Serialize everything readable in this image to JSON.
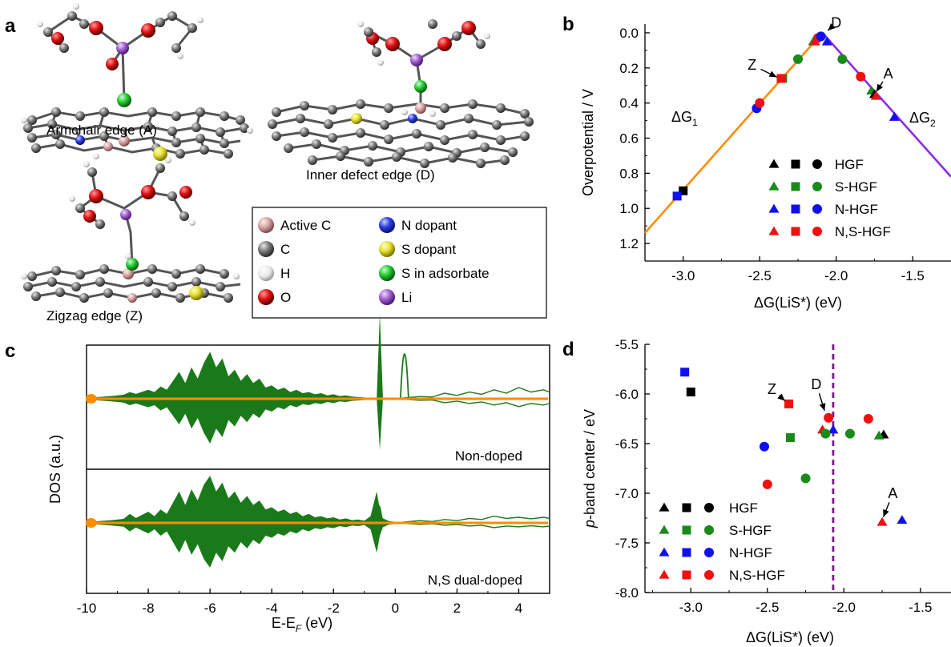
{
  "panels": {
    "a": {
      "letter": "a",
      "captions": {
        "armchair": "Armchair edge (A)",
        "inner": "Inner defect edge (D)",
        "zigzag": "Zigzag edge (Z)"
      },
      "legend": [
        {
          "label": "Active C",
          "color": "#d9a6a6"
        },
        {
          "label": "N dopant",
          "color": "#2b3de0"
        },
        {
          "label": "C",
          "color": "#666666"
        },
        {
          "label": "S dopant",
          "color": "#e6e030"
        },
        {
          "label": "H",
          "color": "#f0f0f0"
        },
        {
          "label": "S in adsorbate",
          "color": "#22cc33"
        },
        {
          "label": "O",
          "color": "#dd1111"
        },
        {
          "label": "Li",
          "color": "#a060d0"
        }
      ]
    },
    "b": {
      "letter": "b"
    },
    "c": {
      "letter": "c"
    },
    "d": {
      "letter": "d"
    }
  },
  "series_legend": {
    "entries": [
      {
        "label": "HGF",
        "color": "#000000"
      },
      {
        "label": "S-HGF",
        "color": "#1a8a1a"
      },
      {
        "label": "N-HGF",
        "color": "#1010ee"
      },
      {
        "label": "N,S-HGF",
        "color": "#ee1111"
      }
    ]
  },
  "chart_data": [
    {
      "panel": "b",
      "type": "scatter",
      "xlabel": "ΔG(LiS*) (eV)",
      "ylabel": "Overpotential / V",
      "xlim": [
        -3.25,
        -1.25
      ],
      "ylim": [
        1.3,
        -0.05
      ],
      "x_ticks": [
        "-3.0",
        "-2.5",
        "-2.0",
        "-1.5"
      ],
      "x_tick_values": [
        -3.0,
        -2.5,
        -2.0,
        -1.5
      ],
      "y_ticks": [
        "0.0",
        "0.2",
        "0.4",
        "0.6",
        "0.8",
        "1.0",
        "1.2"
      ],
      "y_tick_values": [
        0.0,
        0.2,
        0.4,
        0.6,
        0.8,
        1.0,
        1.2
      ],
      "lines": [
        {
          "name": "ΔG1",
          "label_main": "ΔG",
          "label_sub": "1",
          "color": "#ff8c00",
          "x": [
            -3.25,
            -2.09
          ],
          "y": [
            1.14,
            0.0
          ]
        },
        {
          "name": "ΔG2",
          "label_main": "ΔG",
          "label_sub": "2",
          "color": "#8a2be2",
          "x": [
            -2.09,
            -1.25
          ],
          "y": [
            0.0,
            0.82
          ]
        }
      ],
      "points": [
        {
          "x": -3.0,
          "y": 0.9,
          "shape": "square",
          "color": "#000000"
        },
        {
          "x": -3.04,
          "y": 0.93,
          "shape": "square",
          "color": "#1010ee"
        },
        {
          "x": -2.52,
          "y": 0.43,
          "shape": "circle",
          "color": "#1010ee"
        },
        {
          "x": -2.5,
          "y": 0.4,
          "shape": "circle",
          "color": "#ee1111"
        },
        {
          "x": -2.35,
          "y": 0.26,
          "shape": "square",
          "color": "#1a8a1a"
        },
        {
          "x": -2.36,
          "y": 0.26,
          "shape": "square",
          "color": "#ee1111"
        },
        {
          "x": -2.25,
          "y": 0.15,
          "shape": "circle",
          "color": "#1a8a1a"
        },
        {
          "x": -2.15,
          "y": 0.05,
          "shape": "triangle",
          "color": "#1a8a1a"
        },
        {
          "x": -2.14,
          "y": 0.05,
          "shape": "triangle",
          "color": "#ee1111"
        },
        {
          "x": -2.12,
          "y": 0.03,
          "shape": "circle",
          "color": "#ee1111"
        },
        {
          "x": -2.1,
          "y": 0.02,
          "shape": "circle",
          "color": "#1010ee"
        },
        {
          "x": -2.06,
          "y": 0.05,
          "shape": "triangle",
          "color": "#1010ee"
        },
        {
          "x": -1.96,
          "y": 0.15,
          "shape": "circle",
          "color": "#1a8a1a"
        },
        {
          "x": -1.84,
          "y": 0.25,
          "shape": "circle",
          "color": "#ee1111"
        },
        {
          "x": -1.77,
          "y": 0.33,
          "shape": "triangle",
          "color": "#1a8a1a"
        },
        {
          "x": -1.75,
          "y": 0.35,
          "shape": "triangle",
          "color": "#000000"
        },
        {
          "x": -1.74,
          "y": 0.36,
          "shape": "triangle",
          "color": "#ee1111"
        },
        {
          "x": -1.62,
          "y": 0.48,
          "shape": "triangle",
          "color": "#1010ee"
        }
      ],
      "annotations": [
        {
          "text": "D",
          "color": "#ee1111",
          "x": -2.0,
          "y": -0.03,
          "ax": -2.07,
          "ay": 0.0
        },
        {
          "text": "Z",
          "color": "#ee1111",
          "x": -2.55,
          "y": 0.21,
          "ax": -2.37,
          "ay": 0.26
        },
        {
          "text": "A",
          "color": "#ee1111",
          "x": -1.66,
          "y": 0.26,
          "ax": -1.75,
          "ay": 0.35
        }
      ]
    },
    {
      "panel": "c",
      "type": "area",
      "xlabel_main": "E-E",
      "xlabel_sub": "F",
      "xlabel_unit": " (eV)",
      "ylabel": "DOS (a.u.)",
      "xlim": [
        -10,
        5
      ],
      "x_ticks": [
        "-10",
        "-8",
        "-6",
        "-4",
        "-2",
        "0",
        "2",
        "4"
      ],
      "x_tick_values": [
        -10,
        -8,
        -6,
        -4,
        -2,
        0,
        2,
        4
      ],
      "fill_color": "#1a7a1a",
      "line_color": "#ff8c00",
      "subpanels": [
        {
          "label": "Non-doped",
          "envelope": [
            [
              -10,
              0.4
            ],
            [
              -9.6,
              0.8
            ],
            [
              -9.2,
              1.2
            ],
            [
              -8.8,
              1.8
            ],
            [
              -8.6,
              3
            ],
            [
              -8.4,
              2.2
            ],
            [
              -8,
              4
            ],
            [
              -7.8,
              3
            ],
            [
              -7.6,
              5.5
            ],
            [
              -7.4,
              4
            ],
            [
              -7.2,
              8
            ],
            [
              -7,
              12
            ],
            [
              -6.8,
              7
            ],
            [
              -6.6,
              14
            ],
            [
              -6.4,
              9
            ],
            [
              -6.2,
              16
            ],
            [
              -6,
              21
            ],
            [
              -5.8,
              14
            ],
            [
              -5.6,
              18
            ],
            [
              -5.4,
              10
            ],
            [
              -5.2,
              13
            ],
            [
              -5,
              8
            ],
            [
              -4.8,
              11
            ],
            [
              -4.6,
              7
            ],
            [
              -4.4,
              9
            ],
            [
              -4.2,
              5
            ],
            [
              -4,
              6
            ],
            [
              -3.8,
              4
            ],
            [
              -3.6,
              5
            ],
            [
              -3.4,
              3
            ],
            [
              -3.2,
              4
            ],
            [
              -3,
              2.5
            ],
            [
              -2.8,
              3
            ],
            [
              -2.6,
              2
            ],
            [
              -2.4,
              2.5
            ],
            [
              -2.2,
              1.5
            ],
            [
              -2,
              2
            ],
            [
              -1.8,
              1.2
            ],
            [
              -1.6,
              1.5
            ],
            [
              -1.4,
              1
            ],
            [
              -1.2,
              0.8
            ],
            [
              -1,
              0.6
            ],
            [
              -0.8,
              0.4
            ],
            [
              -0.6,
              0.3
            ],
            [
              -0.5,
              38
            ],
            [
              -0.4,
              0.3
            ],
            [
              -0.2,
              0.2
            ],
            [
              0,
              0.1
            ]
          ],
          "spike": {
            "x": 0.3,
            "y": -40
          },
          "tail": [
            [
              0.4,
              0.5
            ],
            [
              0.8,
              1
            ],
            [
              1.2,
              0.8
            ],
            [
              1.6,
              2.5
            ],
            [
              2,
              1.5
            ],
            [
              2.4,
              3
            ],
            [
              2.8,
              2
            ],
            [
              3.2,
              4
            ],
            [
              3.6,
              2.5
            ],
            [
              4,
              5
            ],
            [
              4.4,
              3
            ],
            [
              4.8,
              4
            ],
            [
              5,
              3
            ]
          ]
        },
        {
          "label": "N,S dual-doped",
          "envelope": [
            [
              -10,
              0.4
            ],
            [
              -9.6,
              0.8
            ],
            [
              -9.2,
              1.2
            ],
            [
              -8.8,
              1.8
            ],
            [
              -8.6,
              4
            ],
            [
              -8.4,
              2.2
            ],
            [
              -8,
              5
            ],
            [
              -7.8,
              3
            ],
            [
              -7.6,
              6
            ],
            [
              -7.4,
              4
            ],
            [
              -7.2,
              9
            ],
            [
              -7,
              14
            ],
            [
              -6.8,
              8
            ],
            [
              -6.6,
              15
            ],
            [
              -6.4,
              10
            ],
            [
              -6.2,
              17
            ],
            [
              -6,
              21
            ],
            [
              -5.8,
              14
            ],
            [
              -5.6,
              18
            ],
            [
              -5.4,
              11
            ],
            [
              -5.2,
              14
            ],
            [
              -5,
              9
            ],
            [
              -4.8,
              12
            ],
            [
              -4.6,
              8
            ],
            [
              -4.4,
              10
            ],
            [
              -4.2,
              6
            ],
            [
              -4,
              7
            ],
            [
              -3.8,
              5
            ],
            [
              -3.6,
              6
            ],
            [
              -3.4,
              4
            ],
            [
              -3.2,
              5
            ],
            [
              -3,
              3
            ],
            [
              -2.8,
              4
            ],
            [
              -2.6,
              2.5
            ],
            [
              -2.4,
              3
            ],
            [
              -2.2,
              2
            ],
            [
              -2,
              2.5
            ],
            [
              -1.8,
              1.5
            ],
            [
              -1.6,
              2
            ],
            [
              -1.4,
              1.2
            ],
            [
              -1.2,
              1.5
            ],
            [
              -1,
              1
            ],
            [
              -0.8,
              3
            ],
            [
              -0.6,
              14
            ],
            [
              -0.5,
              6
            ],
            [
              -0.4,
              2
            ],
            [
              -0.2,
              0.8
            ],
            [
              0,
              0.5
            ]
          ],
          "spike": {
            "x": -0.55,
            "y": -16
          },
          "tail": [
            [
              0.4,
              0.5
            ],
            [
              0.8,
              1
            ],
            [
              1.2,
              0.6
            ],
            [
              1.6,
              1.5
            ],
            [
              2,
              1
            ],
            [
              2.4,
              2
            ],
            [
              2.8,
              1.5
            ],
            [
              3.2,
              3
            ],
            [
              3.6,
              2
            ],
            [
              4,
              2.5
            ],
            [
              4.4,
              1.8
            ],
            [
              4.8,
              2.5
            ],
            [
              5,
              2
            ]
          ]
        }
      ]
    },
    {
      "panel": "d",
      "type": "scatter",
      "xlabel": "ΔG(LiS*) (eV)",
      "ylabel_italic": "p",
      "ylabel_rest": "-band center / eV",
      "xlim": [
        -3.3,
        -1.3
      ],
      "ylim": [
        -8.0,
        -5.5
      ],
      "x_ticks": [
        "-3.0",
        "-2.5",
        "-2.0",
        "-1.5"
      ],
      "x_tick_values": [
        -3.0,
        -2.5,
        -2.0,
        -1.5
      ],
      "y_ticks": [
        "-5.5",
        "-6.0",
        "-6.5",
        "-7.0",
        "-7.5",
        "-8.0"
      ],
      "y_tick_values": [
        -5.5,
        -6.0,
        -6.5,
        -7.0,
        -7.5,
        -8.0
      ],
      "vline": {
        "x": -2.07,
        "color": "#7a1a8a"
      },
      "points": [
        {
          "x": -3.04,
          "y": -5.78,
          "shape": "square",
          "color": "#1010ee"
        },
        {
          "x": -3.0,
          "y": -5.98,
          "shape": "square",
          "color": "#000000"
        },
        {
          "x": -2.36,
          "y": -6.1,
          "shape": "square",
          "color": "#ee1111"
        },
        {
          "x": -2.1,
          "y": -6.24,
          "shape": "circle",
          "color": "#ee1111"
        },
        {
          "x": -1.84,
          "y": -6.25,
          "shape": "circle",
          "color": "#ee1111"
        },
        {
          "x": -2.14,
          "y": -6.36,
          "shape": "triangle",
          "color": "#ee1111"
        },
        {
          "x": -2.07,
          "y": -6.36,
          "shape": "triangle",
          "color": "#1010ee"
        },
        {
          "x": -1.96,
          "y": -6.4,
          "shape": "circle",
          "color": "#1a8a1a"
        },
        {
          "x": -2.12,
          "y": -6.4,
          "shape": "circle",
          "color": "#1a8a1a"
        },
        {
          "x": -1.74,
          "y": -6.41,
          "shape": "triangle",
          "color": "#000000"
        },
        {
          "x": -1.77,
          "y": -6.42,
          "shape": "triangle",
          "color": "#1a8a1a"
        },
        {
          "x": -2.35,
          "y": -6.44,
          "shape": "square",
          "color": "#1a8a1a"
        },
        {
          "x": -2.52,
          "y": -6.53,
          "shape": "circle",
          "color": "#1010ee"
        },
        {
          "x": -2.25,
          "y": -6.85,
          "shape": "circle",
          "color": "#1a8a1a"
        },
        {
          "x": -2.5,
          "y": -6.91,
          "shape": "circle",
          "color": "#ee1111"
        },
        {
          "x": -1.75,
          "y": -7.29,
          "shape": "triangle",
          "color": "#ee1111"
        },
        {
          "x": -1.62,
          "y": -7.27,
          "shape": "triangle",
          "color": "#1010ee"
        }
      ],
      "annotations": [
        {
          "text": "Z",
          "color": "#ee1111",
          "x": -2.47,
          "y": -6.0,
          "ax": -2.37,
          "ay": -6.09
        },
        {
          "text": "D",
          "color": "#ee1111",
          "x": -2.18,
          "y": -5.95,
          "ax": -2.12,
          "ay": -6.2
        },
        {
          "text": "A",
          "color": "#ee1111",
          "x": -1.68,
          "y": -7.05,
          "ax": -1.75,
          "ay": -7.27
        }
      ]
    }
  ]
}
